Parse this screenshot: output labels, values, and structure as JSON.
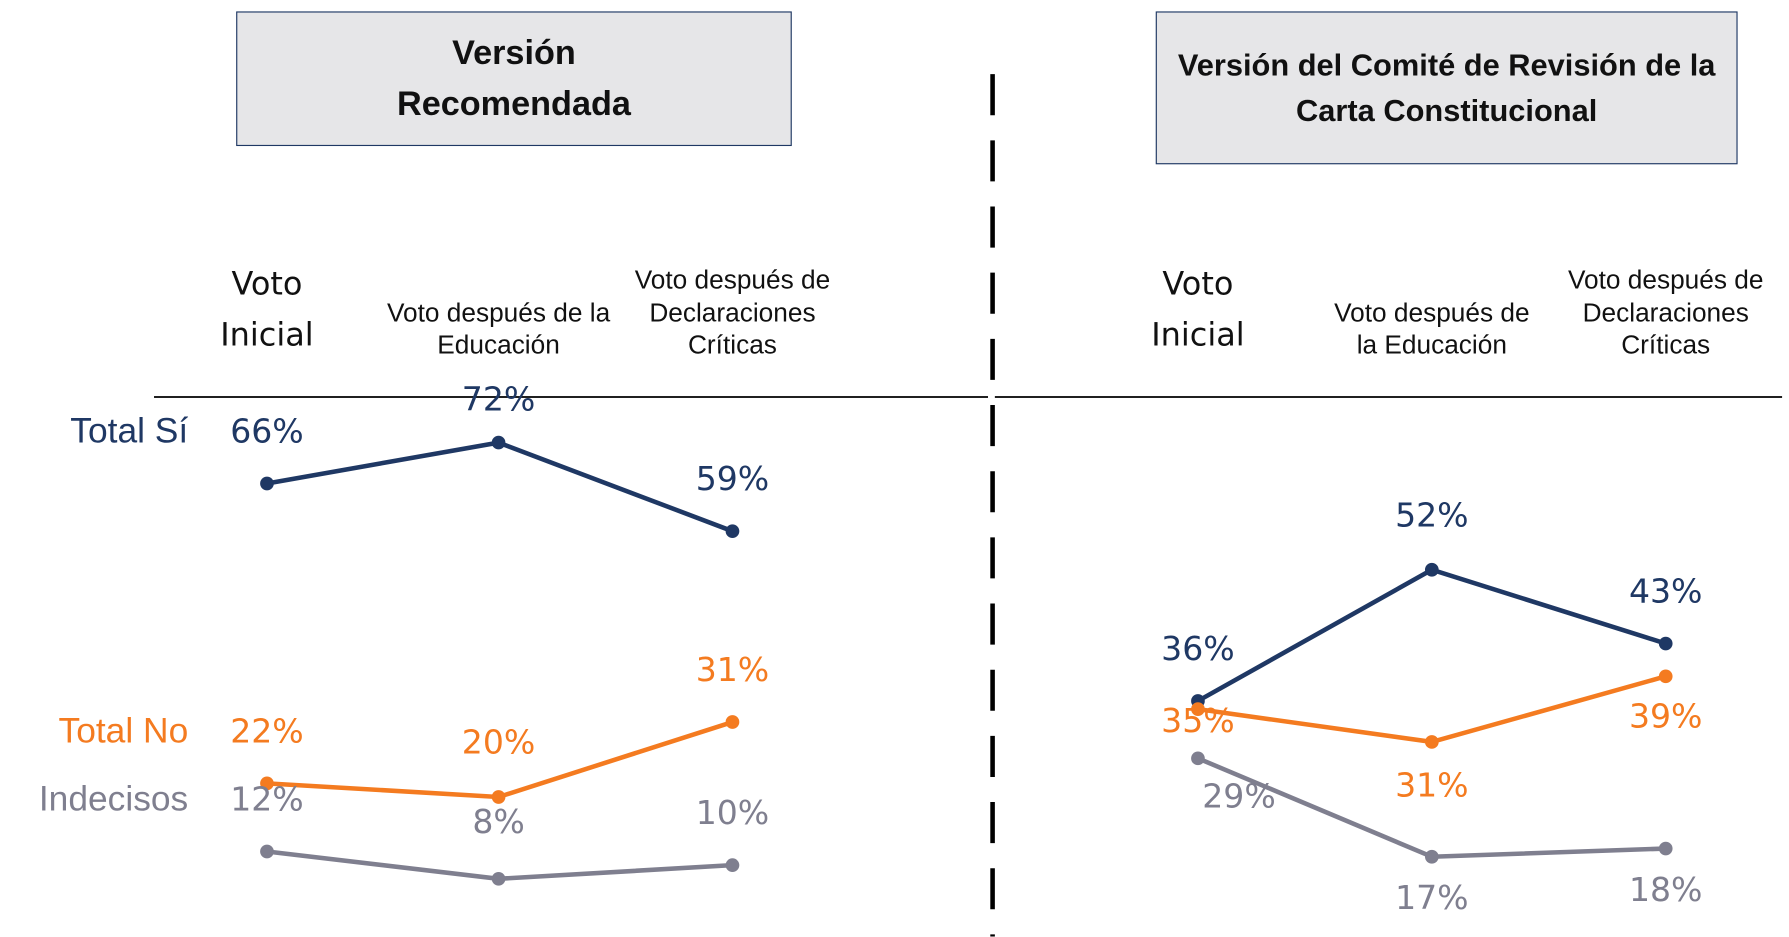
{
  "chart_data": [
    {
      "type": "line",
      "title": "Versión Recomendada",
      "categories": [
        "Voto Inicial",
        "Voto después de la Educación",
        "Voto después de Declaraciones Críticas"
      ],
      "ylim": [
        -2,
        75
      ],
      "series": [
        {
          "name": "Total Sí",
          "color": "#1f3864",
          "values": [
            66,
            72,
            59
          ],
          "value_labels": [
            "66%",
            "72%",
            "59%"
          ]
        },
        {
          "name": "Total No",
          "color": "#f47b20",
          "values": [
            22,
            20,
            31
          ],
          "value_labels": [
            "22%",
            "20%",
            "31%"
          ]
        },
        {
          "name": "Indecisos",
          "color": "#7f7f8f",
          "values": [
            12,
            8,
            10
          ],
          "value_labels": [
            "12%",
            "8%",
            "10%"
          ]
        }
      ]
    },
    {
      "type": "line",
      "title": "Versión del Comité de Revisión de la Carta Constitucional",
      "categories": [
        "Voto Inicial",
        "Voto después de la Educación",
        "Voto después de Declaraciones Críticas"
      ],
      "ylim": [
        6,
        70
      ],
      "series": [
        {
          "color": "#1f3864",
          "values": [
            36,
            52,
            43
          ],
          "value_labels": [
            "36%",
            "52%",
            "43%"
          ]
        },
        {
          "color": "#f47b20",
          "values": [
            35,
            31,
            39
          ],
          "value_labels": [
            "35%",
            "31%",
            "39%"
          ]
        },
        {
          "color": "#7f7f8f",
          "values": [
            29,
            17,
            18
          ],
          "value_labels": [
            "29%",
            "17%",
            "18%"
          ]
        }
      ]
    }
  ]
}
